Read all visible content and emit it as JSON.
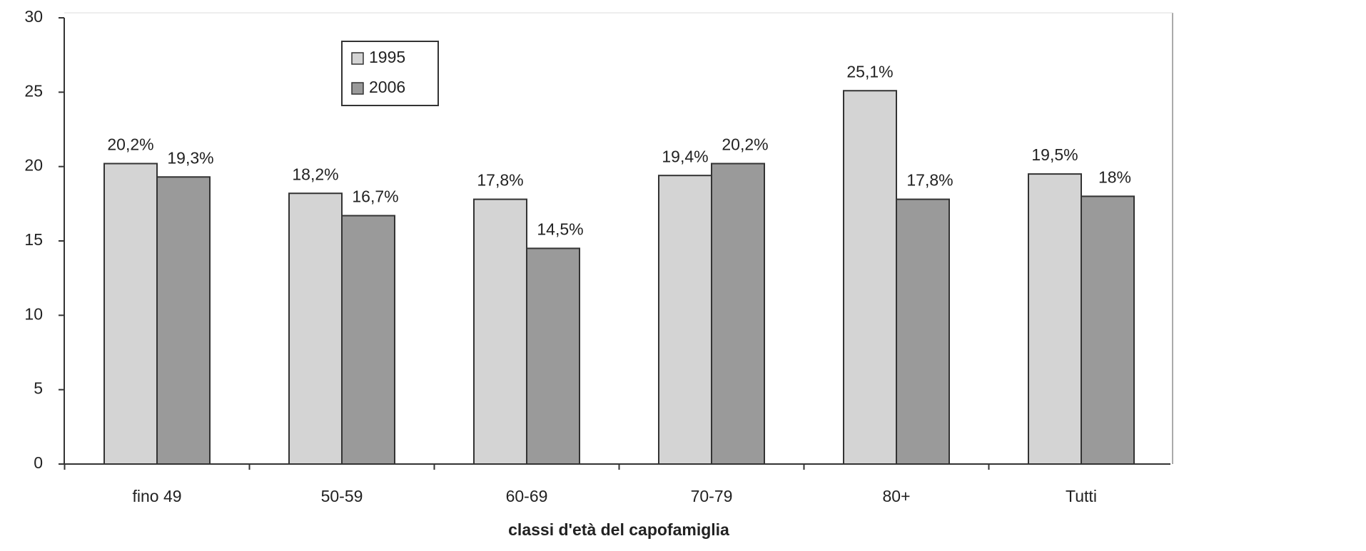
{
  "chart_data": {
    "type": "bar",
    "x_label": "classi d'età del capofamiglia",
    "categories": [
      "fino 49",
      "50-59",
      "60-69",
      "70-79",
      "80+",
      "Tutti"
    ],
    "series": [
      {
        "name": "1995",
        "color": "#d4d4d4",
        "values": [
          20.2,
          18.2,
          17.8,
          19.4,
          25.1,
          19.5
        ],
        "value_labels": [
          "20,2%",
          "18,2%",
          "17,8%",
          "19,4%",
          "25,1%",
          "19,5%"
        ]
      },
      {
        "name": "2006",
        "color": "#9a9a9a",
        "values": [
          19.3,
          16.7,
          14.5,
          20.2,
          17.8,
          18
        ],
        "value_labels": [
          "19,3%",
          "16,7%",
          "14,5%",
          "20,2%",
          "17,8%",
          "18%"
        ]
      }
    ],
    "ylim": [
      0,
      30
    ],
    "yticks": [
      0,
      5,
      10,
      15,
      20,
      25,
      30
    ],
    "grid": false,
    "legend": "top-left"
  }
}
